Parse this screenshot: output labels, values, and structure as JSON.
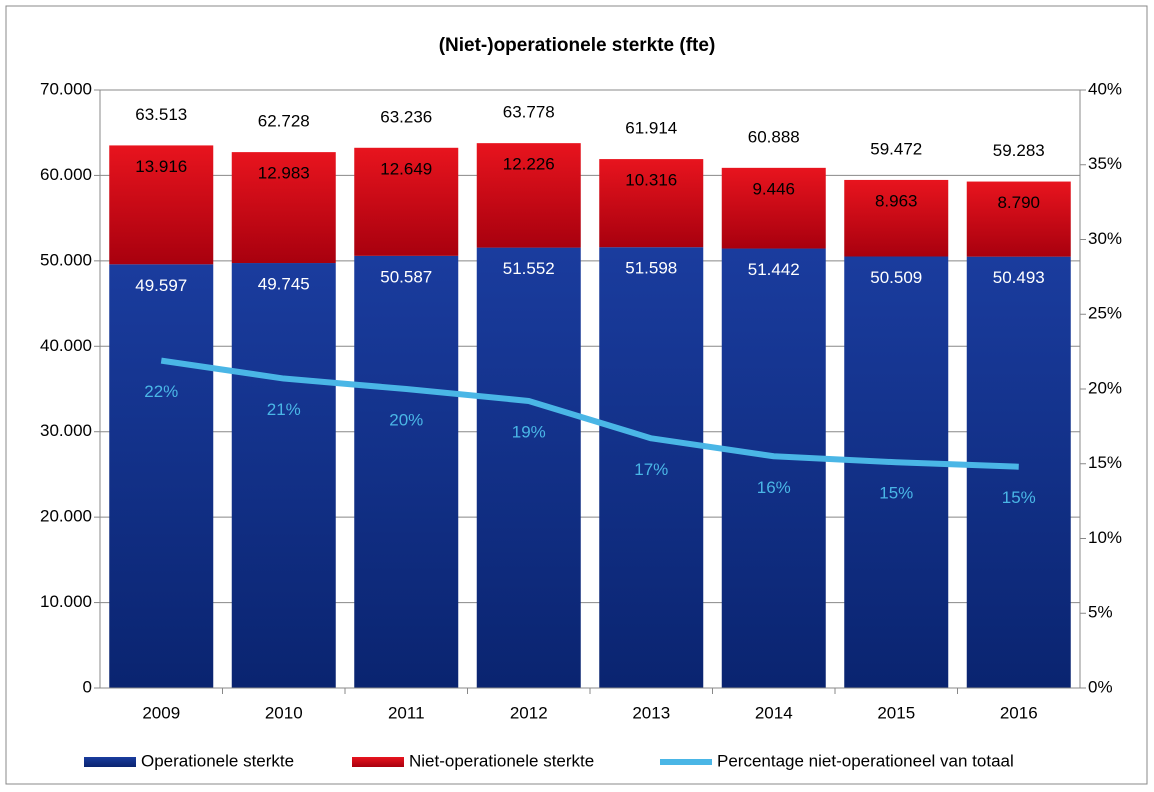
{
  "chart_data": {
    "type": "bar",
    "title": "(Niet-)operationele sterkte (fte)",
    "categories": [
      "2009",
      "2010",
      "2011",
      "2012",
      "2013",
      "2014",
      "2015",
      "2016"
    ],
    "series": [
      {
        "name": "Operationele sterkte",
        "color": "#0d2f8c",
        "values": [
          49597,
          49745,
          50587,
          51552,
          51598,
          51442,
          50509,
          50493
        ],
        "value_labels": [
          "49.597",
          "49.745",
          "50.587",
          "51.552",
          "51.598",
          "51.442",
          "50.509",
          "50.493"
        ]
      },
      {
        "name": "Niet-operationele sterkte",
        "color": "#d8101c",
        "values": [
          13916,
          12983,
          12649,
          12226,
          10316,
          9446,
          8963,
          8790
        ],
        "value_labels": [
          "13.916",
          "12.983",
          "12.649",
          "12.226",
          "10.316",
          "9.446",
          "8.963",
          "8.790"
        ]
      },
      {
        "name": "Percentage niet-operationeel van totaal",
        "color": "#4ab6e6",
        "axis": "y2",
        "values": [
          21.9,
          20.7,
          20.0,
          19.2,
          16.7,
          15.5,
          15.1,
          14.8
        ],
        "value_labels": [
          "22%",
          "21%",
          "20%",
          "19%",
          "17%",
          "16%",
          "15%",
          "15%"
        ]
      }
    ],
    "totals": {
      "values": [
        63513,
        62728,
        63236,
        63778,
        61914,
        60888,
        59472,
        59283
      ],
      "value_labels": [
        "63.513",
        "62.728",
        "63.236",
        "63.778",
        "61.914",
        "60.888",
        "59.472",
        "59.283"
      ]
    },
    "ylim": [
      0,
      70000
    ],
    "yticks": [
      0,
      {
        "value": 10000,
        "label": "10.000"
      },
      {
        "value": 20000,
        "label": "20.000"
      },
      {
        "value": 30000,
        "label": "30.000"
      },
      {
        "value": 40000,
        "label": "40.000"
      },
      {
        "value": 50000,
        "label": "50.000"
      },
      {
        "value": 60000,
        "label": "60.000"
      },
      {
        "value": 70000,
        "label": "70.000"
      }
    ],
    "y2lim": [
      0,
      40
    ],
    "y2ticks": [
      {
        "value": 0,
        "label": "0%"
      },
      {
        "value": 5,
        "label": "5%"
      },
      {
        "value": 10,
        "label": "10%"
      },
      {
        "value": 15,
        "label": "15%"
      },
      {
        "value": 20,
        "label": "20%"
      },
      {
        "value": 25,
        "label": "25%"
      },
      {
        "value": 30,
        "label": "30%"
      },
      {
        "value": 35,
        "label": "35%"
      },
      {
        "value": 40,
        "label": "40%"
      }
    ],
    "grid": true,
    "legend": "bottom"
  }
}
